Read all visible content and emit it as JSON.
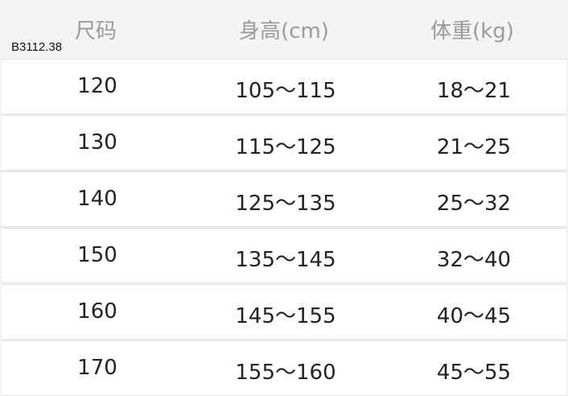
{
  "header": {
    "columns": [
      "尺码",
      "身高(cm)",
      "体重(kg)"
    ],
    "code": "B3112.38"
  },
  "rows": [
    [
      "120",
      "105～115",
      "18～21"
    ],
    [
      "130",
      "115～125",
      "21～25"
    ],
    [
      "140",
      "125～135",
      "25～32"
    ],
    [
      "150",
      "135～145",
      "32～40"
    ],
    [
      "160",
      "145～155",
      "40～45"
    ],
    [
      "170",
      "155～160",
      "45～55"
    ]
  ]
}
